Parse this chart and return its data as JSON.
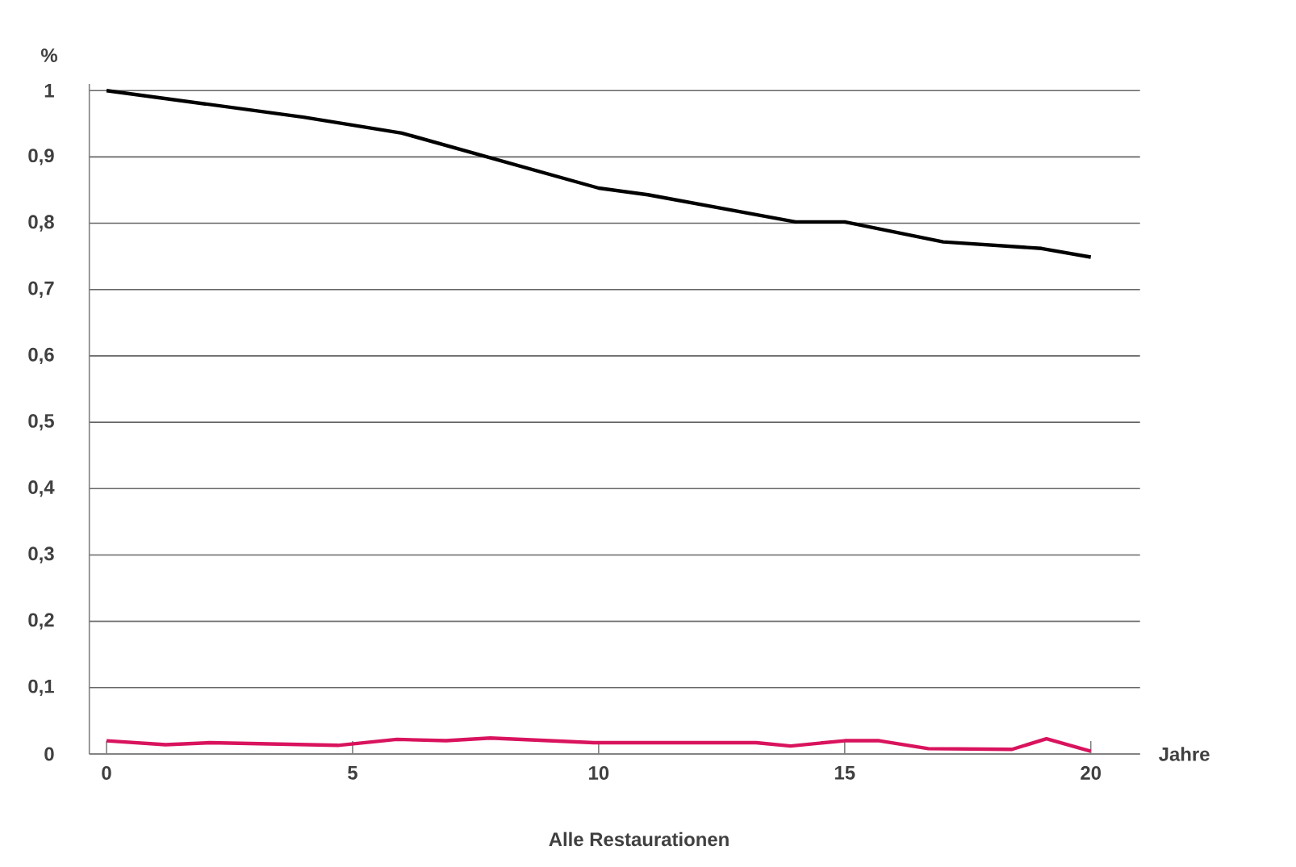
{
  "chart_data": {
    "type": "line",
    "ylabel": "%",
    "xlabel": "Jahre",
    "annotations": [
      "Alle Restaurationen"
    ],
    "xlim": [
      -0.35,
      21
    ],
    "ylim": [
      0,
      1.01
    ],
    "xticks": [
      0,
      5,
      10,
      15,
      20
    ],
    "yticks": [
      0,
      {
        "value": 0.1,
        "label": "0,1"
      },
      {
        "value": 0.2,
        "label": "0,2"
      },
      {
        "value": 0.3,
        "label": "0,3"
      },
      {
        "value": 0.4,
        "label": "0,4"
      },
      {
        "value": 0.5,
        "label": "0,5"
      },
      {
        "value": 0.6,
        "label": "0,6"
      },
      {
        "value": 0.7,
        "label": "0,7"
      },
      {
        "value": 0.8,
        "label": "0,8"
      },
      {
        "value": 0.9,
        "label": "0,9"
      },
      1
    ],
    "grid": "y",
    "marker": "none",
    "line_style": "solid",
    "series": [
      {
        "color": "#000000",
        "x": [
          0,
          4,
          6,
          10,
          11,
          14,
          15,
          17,
          19,
          20
        ],
        "values": [
          1.0,
          0.96,
          0.936,
          0.853,
          0.843,
          0.802,
          0.802,
          0.772,
          0.762,
          0.749
        ]
      },
      {
        "color": "#d9135d",
        "x": [
          0,
          1.2,
          2.1,
          4.7,
          5.9,
          6.9,
          7.8,
          9.9,
          13.2,
          13.9,
          15,
          15.7,
          16.7,
          18.4,
          19.1,
          20
        ],
        "values": [
          0.02,
          0.014,
          0.017,
          0.013,
          0.022,
          0.02,
          0.024,
          0.017,
          0.017,
          0.012,
          0.02,
          0.02,
          0.008,
          0.007,
          0.023,
          0.004
        ]
      }
    ]
  }
}
